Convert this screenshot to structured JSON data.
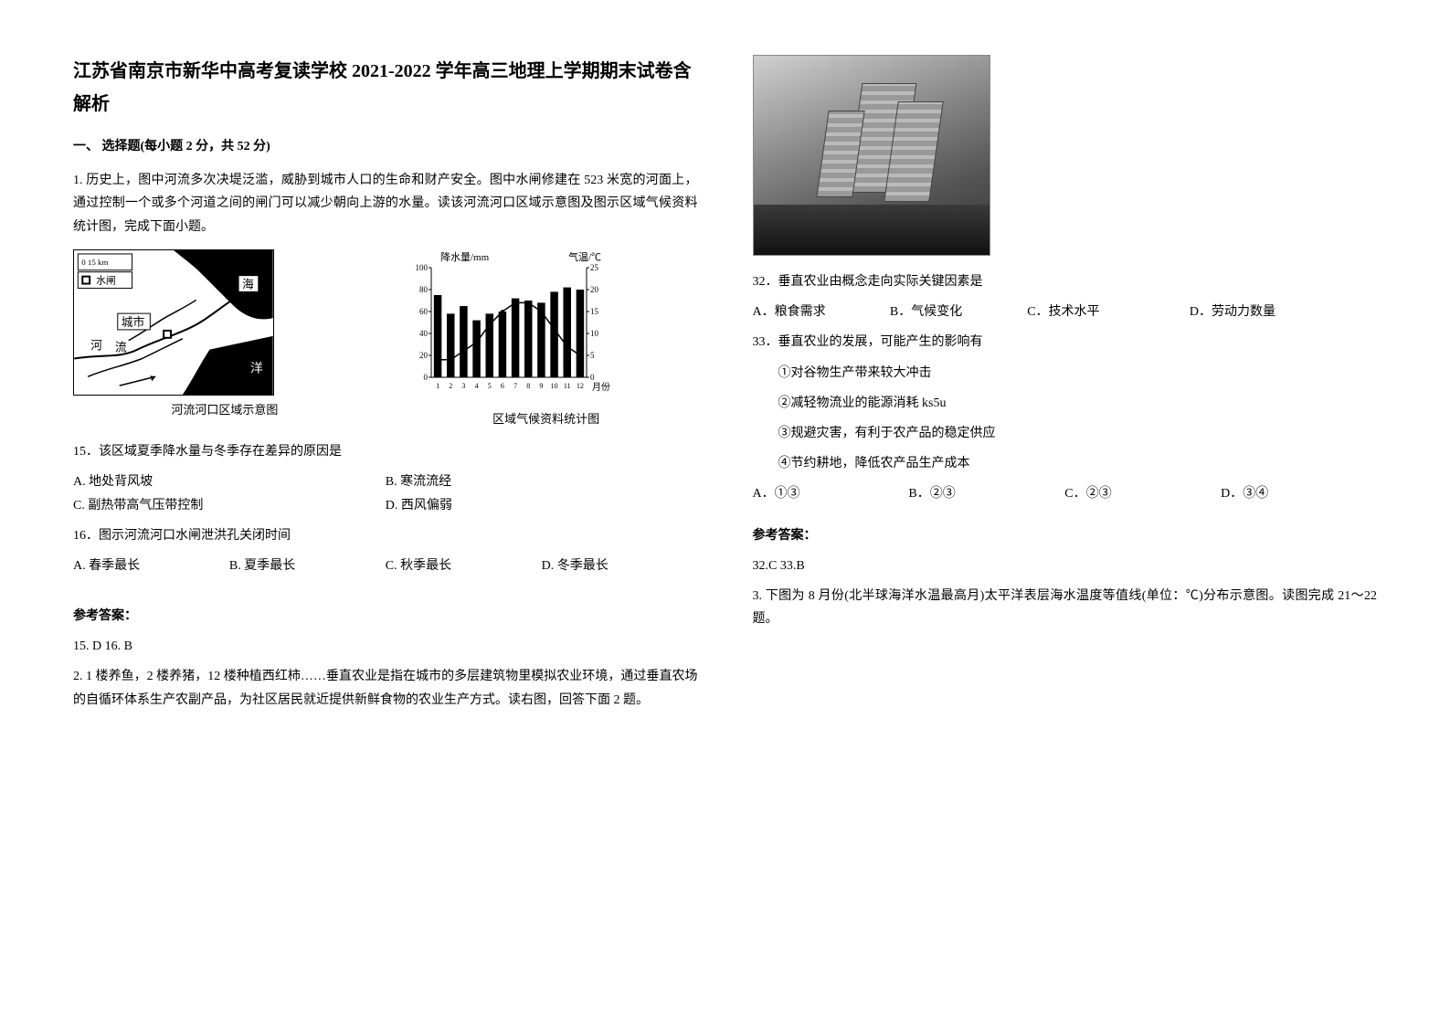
{
  "title": "江苏省南京市新华中高考复读学校 2021-2022 学年高三地理上学期期末试卷含解析",
  "section1": "一、 选择题(每小题 2 分，共 52 分)",
  "q1_intro": "1. 历史上，图中河流多次决堤泛滥，威胁到城市人口的生命和财产安全。图中水闸修建在 523 米宽的河面上，通过控制一个或多个河道之间的闸门可以减少朝向上游的水量。读该河流河口区域示意图及图示区域气候资料统计图，完成下面小题。",
  "map": {
    "caption": "河流河口区域示意图",
    "scale_label": "0   15 km",
    "legend_sluice": "水闸",
    "label_sea": "海",
    "label_city": "城市",
    "label_river_char": "河",
    "label_flow": "流",
    "label_ocean": "洋"
  },
  "chart": {
    "caption": "区域气候资料统计图",
    "ylabel_left": "降水量/mm",
    "ylabel_right": "气温/℃",
    "xlabel": "月份",
    "y_left_ticks": [
      0,
      20,
      40,
      60,
      80,
      100
    ],
    "y_right_ticks": [
      0,
      5,
      10,
      15,
      20,
      25
    ],
    "x_ticks": [
      1,
      2,
      3,
      4,
      5,
      6,
      7,
      8,
      9,
      10,
      11,
      12
    ],
    "precip": [
      75,
      58,
      65,
      52,
      58,
      60,
      72,
      70,
      68,
      78,
      82,
      80
    ],
    "temp": [
      4,
      4,
      6,
      8,
      12,
      15,
      17,
      17,
      15,
      11,
      7,
      5
    ],
    "bar_color": "#000000",
    "line_color": "#000000",
    "bg": "#ffffff"
  },
  "q15": {
    "stem": "15．该区域夏季降水量与冬季存在差异的原因是",
    "A": "A. 地处背风坡",
    "B": "B. 寒流流经",
    "C": "C. 副热带高气压带控制",
    "D": "D. 西风偏弱"
  },
  "q16": {
    "stem": "16．图示河流河口水闸泄洪孔关闭时间",
    "A": "A. 春季最长",
    "B": "B. 夏季最长",
    "C": "C. 秋季最长",
    "D": "D. 冬季最长"
  },
  "faded_text": "",
  "ans_heading_1": "参考答案：",
  "ans_15_16": "15. D          16. B",
  "q2_intro": "2. 1 楼养鱼，2 楼养猪，12 楼种植西红柿……垂直农业是指在城市的多层建筑物里模拟农业环境，通过垂直农场的自循环体系生产农副产品，为社区居民就近提供新鲜食物的农业生产方式。读右图，回答下面 2 题。",
  "q32": {
    "stem": "32．垂直农业由概念走向实际关键因素是",
    "A": "A．粮食需求",
    "B": "B．气候变化",
    "C": "C．技术水平",
    "D": "D．劳动力数量"
  },
  "q33": {
    "stem": "33．垂直农业的发展，可能产生的影响有",
    "i1": "①对谷物生产带来较大冲击",
    "i2": "②减轻物流业的能源消耗 ks5u",
    "i3": "③规避灾害，有利于农产品的稳定供应",
    "i4": "④节约耕地，降低农产品生产成本",
    "A": "A．①③",
    "B": "B．②③",
    "C": "C．②③",
    "D": "D．③④"
  },
  "ans_heading_2": "参考答案：",
  "ans_32_33": "32.C    33.B",
  "q3_intro": "3. 下图为 8 月份(北半球海洋水温最高月)太平洋表层海水温度等值线(单位：℃)分布示意图。读图完成 21～22 题。"
}
